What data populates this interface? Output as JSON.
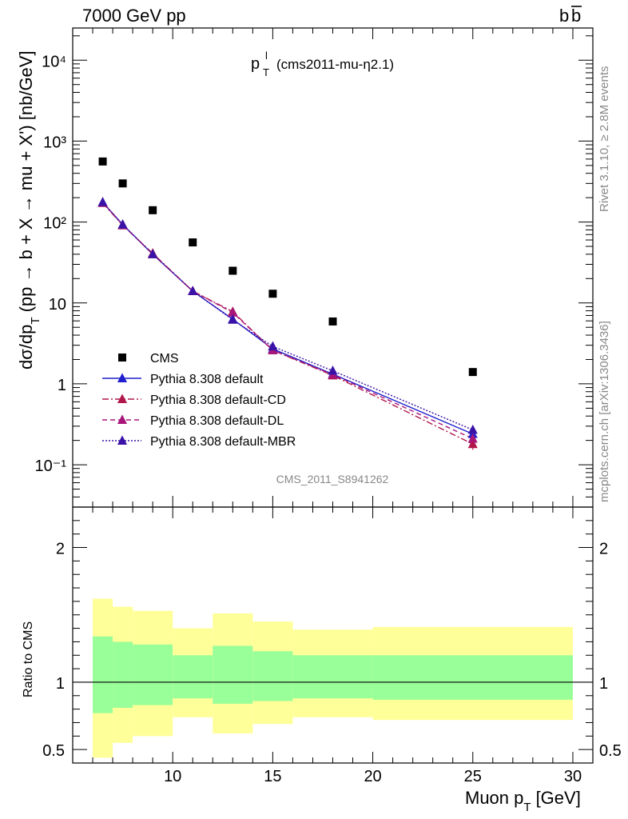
{
  "header": {
    "left": "7000 GeV pp",
    "right_main": "b",
    "right_bar": "b"
  },
  "title": {
    "main": "p",
    "sup": "l",
    "sub": "T",
    "suffix": "(cms2011-mu-η2.1)"
  },
  "side_labels": {
    "rivet": "Rivet 3.1.10, ≥ 2.8M events",
    "mcplots": "mcplots.cern.ch [arXiv:1306.3436]"
  },
  "watermark": "CMS_2011_S8941262",
  "ylabel_main": {
    "part1": "dσ/dp",
    "sub": "T",
    "part2": "(pp → b + X → mu + X') [nb/GeV]"
  },
  "ylabel_ratio": "Ratio to CMS",
  "xlabel": {
    "part1": "Muon p",
    "sub": "T",
    "part2": "[GeV]"
  },
  "colors": {
    "default": "#1f1fcc",
    "cd": "#b0174a",
    "dl": "#a8157a",
    "mbr": "#3a12a8",
    "band_outer": "#ffff99",
    "band_inner": "#99ff99"
  },
  "chart_data": [
    {
      "type": "scatter",
      "xlim": [
        5,
        31
      ],
      "ylim": [
        0.03,
        25000
      ],
      "yscale": "log",
      "xbins": [
        [
          6,
          7
        ],
        [
          7,
          8
        ],
        [
          8,
          10
        ],
        [
          10,
          12
        ],
        [
          12,
          14
        ],
        [
          14,
          16
        ],
        [
          16,
          20
        ],
        [
          20,
          30
        ]
      ],
      "x": [
        6.5,
        7.5,
        9,
        11,
        13,
        15,
        18,
        25
      ],
      "y_tick_labels": [
        "10⁻¹",
        "1",
        "10",
        "10²",
        "10³",
        "10⁴"
      ],
      "legend_position": "lower-left",
      "series": [
        {
          "name": "CMS",
          "style": "square",
          "values": [
            560,
            300,
            140,
            56,
            25,
            13,
            5.9,
            1.4
          ]
        },
        {
          "name": "Pythia 8.308 default",
          "style": "solid",
          "color_key": "default",
          "values": [
            175,
            93,
            40,
            14,
            6.3,
            2.7,
            1.32,
            0.24
          ]
        },
        {
          "name": "Pythia 8.308 default-CD",
          "style": "dashdot",
          "color_key": "cd",
          "values": [
            172,
            91,
            41,
            14,
            7.8,
            2.6,
            1.27,
            0.18
          ]
        },
        {
          "name": "Pythia 8.308 default-DL",
          "style": "dashed",
          "color_key": "dl",
          "values": [
            174,
            92,
            40,
            14,
            7.6,
            2.6,
            1.3,
            0.21
          ]
        },
        {
          "name": "Pythia 8.308 default-MBR",
          "style": "dotted",
          "color_key": "mbr",
          "values": [
            176,
            93,
            40,
            14,
            6.2,
            2.9,
            1.45,
            0.27
          ]
        }
      ]
    },
    {
      "type": "area",
      "xlim": [
        5,
        31
      ],
      "ylim": [
        0.4,
        2.3
      ],
      "x_tick_labels": [
        "10",
        "15",
        "20",
        "25",
        "30"
      ],
      "y_tick_labels": [
        "0.5",
        "1",
        "2"
      ],
      "reference_line": 1,
      "bands": {
        "xbins": [
          [
            6,
            7
          ],
          [
            7,
            8
          ],
          [
            8,
            10
          ],
          [
            10,
            12
          ],
          [
            12,
            14
          ],
          [
            14,
            16
          ],
          [
            16,
            20
          ],
          [
            20,
            30
          ]
        ],
        "outer_low": [
          0.44,
          0.55,
          0.6,
          0.74,
          0.62,
          0.69,
          0.74,
          0.72
        ],
        "outer_high": [
          1.62,
          1.56,
          1.53,
          1.4,
          1.51,
          1.45,
          1.39,
          1.41
        ],
        "inner_low": [
          0.77,
          0.81,
          0.83,
          0.88,
          0.84,
          0.86,
          0.88,
          0.87
        ],
        "inner_high": [
          1.34,
          1.3,
          1.28,
          1.2,
          1.27,
          1.23,
          1.2,
          1.2
        ]
      }
    }
  ]
}
